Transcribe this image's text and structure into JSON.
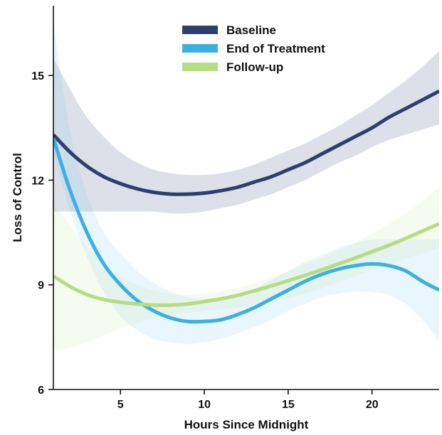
{
  "chart_data": {
    "type": "line",
    "xlabel": "Hours Since Midnight",
    "ylabel": "Loss of Control",
    "xlim": [
      1,
      24
    ],
    "ylim": [
      6,
      17
    ],
    "xticks": [
      5,
      10,
      15,
      20
    ],
    "yticks": [
      6,
      9,
      12,
      15
    ],
    "grid": false,
    "legend_position": "top-center",
    "x": [
      1,
      2,
      3,
      4,
      5,
      6,
      7,
      8,
      9,
      10,
      11,
      12,
      13,
      14,
      15,
      16,
      17,
      18,
      19,
      20,
      21,
      22,
      23,
      24
    ],
    "series": [
      {
        "name": "Baseline",
        "color": "#2e3f6e",
        "band_color": "#2e3f6e",
        "values": [
          13.3,
          12.8,
          12.4,
          12.1,
          11.9,
          11.75,
          11.65,
          11.6,
          11.6,
          11.63,
          11.7,
          11.8,
          11.95,
          12.1,
          12.3,
          12.5,
          12.75,
          13.0,
          13.25,
          13.5,
          13.8,
          14.05,
          14.3,
          14.55
        ],
        "lower": [
          11.1,
          11.1,
          11.1,
          11.1,
          11.1,
          11.1,
          11.1,
          11.05,
          11.05,
          11.1,
          11.2,
          11.3,
          11.45,
          11.6,
          11.8,
          12.0,
          12.25,
          12.5,
          12.7,
          12.95,
          13.15,
          13.3,
          13.45,
          13.6
        ],
        "upper": [
          15.5,
          14.6,
          13.8,
          13.25,
          12.8,
          12.5,
          12.3,
          12.2,
          12.15,
          12.15,
          12.2,
          12.3,
          12.45,
          12.65,
          12.85,
          13.05,
          13.3,
          13.55,
          13.85,
          14.15,
          14.5,
          14.85,
          15.25,
          15.7
        ]
      },
      {
        "name": "End of Treatment",
        "color": "#3bb0e3",
        "band_color": "#7fcaf0",
        "values": [
          13.2,
          11.7,
          10.5,
          9.6,
          9.0,
          8.55,
          8.25,
          8.05,
          7.95,
          7.95,
          8.0,
          8.15,
          8.35,
          8.6,
          8.85,
          9.1,
          9.3,
          9.45,
          9.55,
          9.6,
          9.55,
          9.4,
          9.1,
          8.85
        ],
        "lower": [
          12.8,
          11.1,
          9.8,
          8.8,
          8.1,
          7.7,
          7.45,
          7.35,
          7.3,
          7.35,
          7.45,
          7.6,
          7.8,
          8.0,
          8.25,
          8.45,
          8.65,
          8.75,
          8.8,
          8.8,
          8.7,
          8.45,
          8.0,
          7.4
        ],
        "upper": [
          16.5,
          13.4,
          11.6,
          10.5,
          9.9,
          9.4,
          9.05,
          8.8,
          8.65,
          8.6,
          8.65,
          8.75,
          8.9,
          9.15,
          9.4,
          9.65,
          9.85,
          10.05,
          10.2,
          10.3,
          10.3,
          10.3,
          10.3,
          10.3
        ]
      },
      {
        "name": "Follow-up",
        "color": "#b5dd82",
        "band_color": "#c8e6a4",
        "values": [
          9.25,
          8.95,
          8.72,
          8.58,
          8.5,
          8.45,
          8.42,
          8.42,
          8.45,
          8.52,
          8.6,
          8.7,
          8.83,
          8.97,
          9.12,
          9.27,
          9.43,
          9.6,
          9.77,
          9.95,
          10.13,
          10.33,
          10.54,
          10.75
        ],
        "lower": [
          7.1,
          7.2,
          7.35,
          7.55,
          7.75,
          7.9,
          8.05,
          8.15,
          8.2,
          8.25,
          8.3,
          8.35,
          8.42,
          8.52,
          8.62,
          8.75,
          8.9,
          9.07,
          9.25,
          9.42,
          9.58,
          9.75,
          9.9,
          10.05
        ],
        "upper": [
          11.4,
          10.7,
          10.1,
          9.6,
          9.25,
          9.0,
          8.85,
          8.75,
          8.72,
          8.75,
          8.82,
          8.92,
          9.05,
          9.2,
          9.38,
          9.57,
          9.77,
          9.98,
          10.22,
          10.47,
          10.75,
          11.05,
          11.4,
          11.8
        ]
      }
    ]
  }
}
